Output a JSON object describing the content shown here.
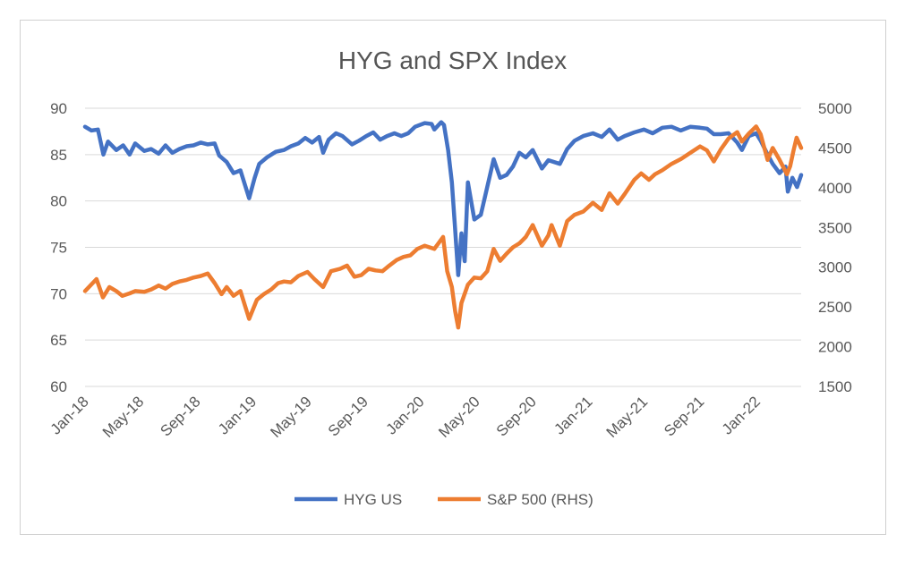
{
  "chart_data": {
    "type": "line",
    "title": "HYG and SPX Index",
    "y_left": {
      "min": 60,
      "max": 90,
      "ticks": [
        60,
        65,
        70,
        75,
        80,
        85,
        90
      ]
    },
    "y_right": {
      "min": 1500,
      "max": 5000,
      "ticks": [
        1500,
        2000,
        2500,
        3000,
        3500,
        4000,
        4500,
        5000
      ]
    },
    "x_range": [
      "2018-01-01",
      "2022-04-08"
    ],
    "x_ticks": [
      {
        "date": "2018-01-01",
        "label": "Jan-18"
      },
      {
        "date": "2018-05-01",
        "label": "May-18"
      },
      {
        "date": "2018-09-01",
        "label": "Sep-18"
      },
      {
        "date": "2019-01-01",
        "label": "Jan-19"
      },
      {
        "date": "2019-05-01",
        "label": "May-19"
      },
      {
        "date": "2019-09-01",
        "label": "Sep-19"
      },
      {
        "date": "2020-01-01",
        "label": "Jan-20"
      },
      {
        "date": "2020-05-01",
        "label": "May-20"
      },
      {
        "date": "2020-09-01",
        "label": "Sep-20"
      },
      {
        "date": "2021-01-01",
        "label": "Jan-21"
      },
      {
        "date": "2021-05-01",
        "label": "May-21"
      },
      {
        "date": "2021-09-01",
        "label": "Sep-21"
      },
      {
        "date": "2022-01-01",
        "label": "Jan-22"
      }
    ],
    "grid": true,
    "legend_position": "bottom",
    "series": [
      {
        "name": "HYG US",
        "axis": "left",
        "color": "#4472C4",
        "points": [
          [
            "2018-01-01",
            88.0
          ],
          [
            "2018-01-15",
            87.6
          ],
          [
            "2018-01-29",
            87.7
          ],
          [
            "2018-02-10",
            85.0
          ],
          [
            "2018-02-20",
            86.4
          ],
          [
            "2018-03-10",
            85.5
          ],
          [
            "2018-03-25",
            86.0
          ],
          [
            "2018-04-08",
            85.0
          ],
          [
            "2018-04-20",
            86.2
          ],
          [
            "2018-05-10",
            85.4
          ],
          [
            "2018-05-25",
            85.6
          ],
          [
            "2018-06-10",
            85.1
          ],
          [
            "2018-06-25",
            86.0
          ],
          [
            "2018-07-10",
            85.2
          ],
          [
            "2018-07-25",
            85.6
          ],
          [
            "2018-08-10",
            85.9
          ],
          [
            "2018-08-25",
            86.0
          ],
          [
            "2018-09-10",
            86.3
          ],
          [
            "2018-09-25",
            86.1
          ],
          [
            "2018-10-10",
            86.2
          ],
          [
            "2018-10-20",
            84.9
          ],
          [
            "2018-11-05",
            84.2
          ],
          [
            "2018-11-20",
            83.0
          ],
          [
            "2018-12-05",
            83.3
          ],
          [
            "2018-12-24",
            80.3
          ],
          [
            "2019-01-05",
            82.5
          ],
          [
            "2019-01-15",
            84.0
          ],
          [
            "2019-02-01",
            84.7
          ],
          [
            "2019-02-20",
            85.3
          ],
          [
            "2019-03-10",
            85.5
          ],
          [
            "2019-03-25",
            85.9
          ],
          [
            "2019-04-10",
            86.2
          ],
          [
            "2019-04-25",
            86.8
          ],
          [
            "2019-05-10",
            86.3
          ],
          [
            "2019-05-25",
            86.9
          ],
          [
            "2019-06-03",
            85.2
          ],
          [
            "2019-06-15",
            86.6
          ],
          [
            "2019-07-01",
            87.3
          ],
          [
            "2019-07-15",
            87.0
          ],
          [
            "2019-08-05",
            86.1
          ],
          [
            "2019-08-20",
            86.5
          ],
          [
            "2019-09-05",
            87.0
          ],
          [
            "2019-09-20",
            87.4
          ],
          [
            "2019-10-05",
            86.6
          ],
          [
            "2019-10-20",
            87.0
          ],
          [
            "2019-11-05",
            87.3
          ],
          [
            "2019-11-20",
            87.0
          ],
          [
            "2019-12-05",
            87.3
          ],
          [
            "2019-12-20",
            88.0
          ],
          [
            "2020-01-10",
            88.4
          ],
          [
            "2020-01-25",
            88.3
          ],
          [
            "2020-01-31",
            87.7
          ],
          [
            "2020-02-15",
            88.5
          ],
          [
            "2020-02-21",
            88.2
          ],
          [
            "2020-03-01",
            85.5
          ],
          [
            "2020-03-09",
            82.0
          ],
          [
            "2020-03-16",
            77.0
          ],
          [
            "2020-03-23",
            72.0
          ],
          [
            "2020-03-30",
            76.5
          ],
          [
            "2020-04-06",
            73.5
          ],
          [
            "2020-04-13",
            82.0
          ],
          [
            "2020-04-20",
            80.0
          ],
          [
            "2020-04-27",
            78.0
          ],
          [
            "2020-05-11",
            78.5
          ],
          [
            "2020-05-25",
            81.5
          ],
          [
            "2020-06-08",
            84.5
          ],
          [
            "2020-06-22",
            82.5
          ],
          [
            "2020-07-06",
            82.8
          ],
          [
            "2020-07-20",
            83.7
          ],
          [
            "2020-08-03",
            85.2
          ],
          [
            "2020-08-17",
            84.7
          ],
          [
            "2020-09-01",
            85.5
          ],
          [
            "2020-09-21",
            83.5
          ],
          [
            "2020-10-05",
            84.4
          ],
          [
            "2020-10-30",
            84.0
          ],
          [
            "2020-11-15",
            85.6
          ],
          [
            "2020-12-01",
            86.5
          ],
          [
            "2020-12-20",
            87.0
          ],
          [
            "2021-01-10",
            87.3
          ],
          [
            "2021-01-29",
            86.9
          ],
          [
            "2021-02-15",
            87.7
          ],
          [
            "2021-03-05",
            86.6
          ],
          [
            "2021-03-20",
            87.0
          ],
          [
            "2021-04-10",
            87.4
          ],
          [
            "2021-05-01",
            87.7
          ],
          [
            "2021-05-20",
            87.3
          ],
          [
            "2021-06-10",
            87.9
          ],
          [
            "2021-06-30",
            88.0
          ],
          [
            "2021-07-20",
            87.6
          ],
          [
            "2021-08-10",
            88.0
          ],
          [
            "2021-08-31",
            87.9
          ],
          [
            "2021-09-15",
            87.8
          ],
          [
            "2021-09-30",
            87.2
          ],
          [
            "2021-10-15",
            87.2
          ],
          [
            "2021-11-01",
            87.3
          ],
          [
            "2021-11-20",
            86.3
          ],
          [
            "2021-11-30",
            85.5
          ],
          [
            "2021-12-15",
            87.0
          ],
          [
            "2021-12-31",
            87.3
          ],
          [
            "2022-01-10",
            86.5
          ],
          [
            "2022-01-25",
            85.0
          ],
          [
            "2022-02-05",
            84.0
          ],
          [
            "2022-02-20",
            83.0
          ],
          [
            "2022-03-05",
            83.7
          ],
          [
            "2022-03-10",
            81.0
          ],
          [
            "2022-03-20",
            82.5
          ],
          [
            "2022-03-30",
            81.5
          ],
          [
            "2022-04-08",
            82.8
          ]
        ]
      },
      {
        "name": "S&P 500 (RHS)",
        "axis": "right",
        "color": "#ED7D31",
        "points": [
          [
            "2018-01-01",
            2700
          ],
          [
            "2018-01-26",
            2850
          ],
          [
            "2018-02-09",
            2620
          ],
          [
            "2018-02-23",
            2750
          ],
          [
            "2018-03-10",
            2700
          ],
          [
            "2018-03-23",
            2640
          ],
          [
            "2018-04-08",
            2670
          ],
          [
            "2018-04-20",
            2700
          ],
          [
            "2018-05-10",
            2690
          ],
          [
            "2018-05-25",
            2720
          ],
          [
            "2018-06-10",
            2770
          ],
          [
            "2018-06-25",
            2730
          ],
          [
            "2018-07-10",
            2790
          ],
          [
            "2018-07-25",
            2820
          ],
          [
            "2018-08-10",
            2840
          ],
          [
            "2018-08-25",
            2870
          ],
          [
            "2018-09-10",
            2890
          ],
          [
            "2018-09-25",
            2920
          ],
          [
            "2018-10-10",
            2800
          ],
          [
            "2018-10-25",
            2660
          ],
          [
            "2018-11-05",
            2750
          ],
          [
            "2018-11-20",
            2640
          ],
          [
            "2018-12-05",
            2700
          ],
          [
            "2018-12-24",
            2350
          ],
          [
            "2019-01-10",
            2590
          ],
          [
            "2019-01-25",
            2660
          ],
          [
            "2019-02-10",
            2720
          ],
          [
            "2019-02-25",
            2800
          ],
          [
            "2019-03-10",
            2820
          ],
          [
            "2019-03-25",
            2810
          ],
          [
            "2019-04-10",
            2890
          ],
          [
            "2019-04-30",
            2940
          ],
          [
            "2019-05-15",
            2850
          ],
          [
            "2019-06-03",
            2750
          ],
          [
            "2019-06-20",
            2950
          ],
          [
            "2019-07-10",
            2980
          ],
          [
            "2019-07-25",
            3020
          ],
          [
            "2019-08-10",
            2880
          ],
          [
            "2019-08-25",
            2900
          ],
          [
            "2019-09-10",
            2980
          ],
          [
            "2019-09-25",
            2960
          ],
          [
            "2019-10-10",
            2950
          ],
          [
            "2019-10-25",
            3020
          ],
          [
            "2019-11-10",
            3090
          ],
          [
            "2019-11-25",
            3130
          ],
          [
            "2019-12-10",
            3150
          ],
          [
            "2019-12-25",
            3230
          ],
          [
            "2020-01-10",
            3270
          ],
          [
            "2020-01-31",
            3230
          ],
          [
            "2020-02-19",
            3380
          ],
          [
            "2020-02-28",
            2950
          ],
          [
            "2020-03-09",
            2750
          ],
          [
            "2020-03-16",
            2450
          ],
          [
            "2020-03-23",
            2240
          ],
          [
            "2020-03-30",
            2550
          ],
          [
            "2020-04-13",
            2780
          ],
          [
            "2020-04-27",
            2870
          ],
          [
            "2020-05-11",
            2860
          ],
          [
            "2020-05-25",
            2950
          ],
          [
            "2020-06-08",
            3230
          ],
          [
            "2020-06-22",
            3080
          ],
          [
            "2020-07-06",
            3170
          ],
          [
            "2020-07-20",
            3250
          ],
          [
            "2020-08-03",
            3300
          ],
          [
            "2020-08-17",
            3380
          ],
          [
            "2020-09-01",
            3530
          ],
          [
            "2020-09-21",
            3270
          ],
          [
            "2020-10-05",
            3400
          ],
          [
            "2020-10-12",
            3530
          ],
          [
            "2020-10-30",
            3270
          ],
          [
            "2020-11-15",
            3580
          ],
          [
            "2020-12-01",
            3660
          ],
          [
            "2020-12-20",
            3700
          ],
          [
            "2021-01-10",
            3810
          ],
          [
            "2021-01-29",
            3720
          ],
          [
            "2021-02-15",
            3930
          ],
          [
            "2021-03-05",
            3800
          ],
          [
            "2021-03-20",
            3920
          ],
          [
            "2021-04-10",
            4100
          ],
          [
            "2021-04-25",
            4180
          ],
          [
            "2021-05-12",
            4100
          ],
          [
            "2021-05-25",
            4170
          ],
          [
            "2021-06-10",
            4220
          ],
          [
            "2021-06-30",
            4300
          ],
          [
            "2021-07-20",
            4360
          ],
          [
            "2021-08-10",
            4440
          ],
          [
            "2021-08-31",
            4520
          ],
          [
            "2021-09-15",
            4470
          ],
          [
            "2021-09-30",
            4330
          ],
          [
            "2021-10-15",
            4480
          ],
          [
            "2021-11-01",
            4620
          ],
          [
            "2021-11-20",
            4700
          ],
          [
            "2021-11-30",
            4580
          ],
          [
            "2021-12-15",
            4680
          ],
          [
            "2021-12-31",
            4770
          ],
          [
            "2022-01-10",
            4670
          ],
          [
            "2022-01-25",
            4350
          ],
          [
            "2022-02-05",
            4500
          ],
          [
            "2022-02-20",
            4350
          ],
          [
            "2022-03-08",
            4170
          ],
          [
            "2022-03-15",
            4270
          ],
          [
            "2022-03-22",
            4460
          ],
          [
            "2022-03-29",
            4630
          ],
          [
            "2022-04-08",
            4500
          ]
        ]
      }
    ]
  }
}
